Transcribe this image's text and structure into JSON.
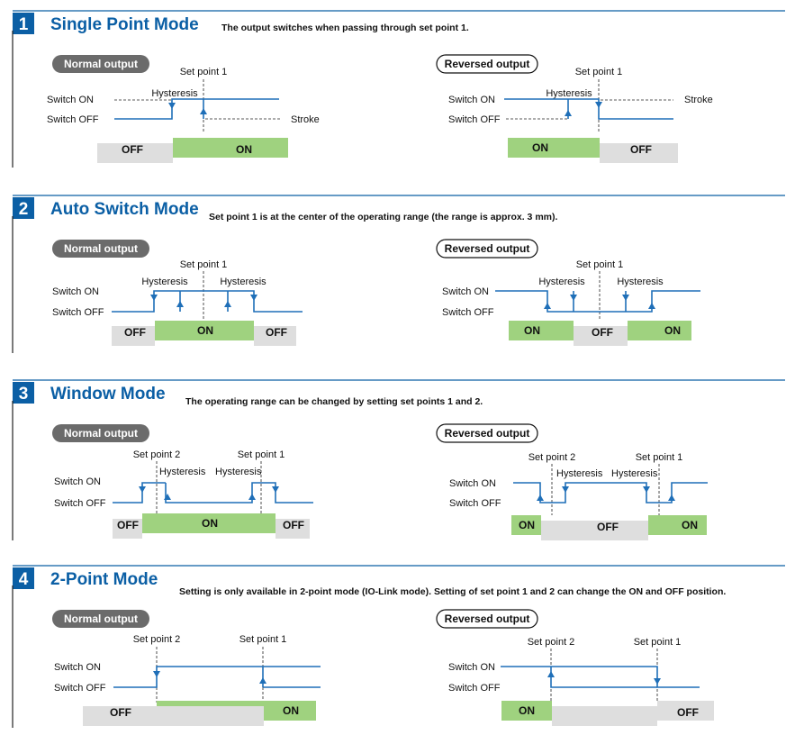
{
  "colors": {
    "accent": "#0b5fa5",
    "signal": "#1f6fb8",
    "on_fill": "#9fd27f",
    "off_fill": "#dedede",
    "pill_dark": "#6b6b6b"
  },
  "labels": {
    "normal_output": "Normal output",
    "reversed_output": "Reversed output",
    "switch_on": "Switch ON",
    "switch_off": "Switch OFF",
    "on": "ON",
    "off": "OFF",
    "hysteresis": "Hysteresis",
    "stroke": "Stroke",
    "set_point_1": "Set point 1",
    "set_point_2": "Set point 2"
  },
  "sections": [
    {
      "number": "1",
      "title": "Single Point Mode",
      "description": "The output switches when passing through set point 1."
    },
    {
      "number": "2",
      "title": "Auto Switch Mode",
      "description": "Set point 1 is at the center of the operating range (the range is approx. 3 mm)."
    },
    {
      "number": "3",
      "title": "Window Mode",
      "description": "The operating range can be changed by setting set points 1 and 2."
    },
    {
      "number": "4",
      "title": "2-Point Mode",
      "description": "Setting is only available in 2-point mode (IO-Link mode). Setting of set point 1 and 2 can change the ON and OFF position."
    }
  ]
}
